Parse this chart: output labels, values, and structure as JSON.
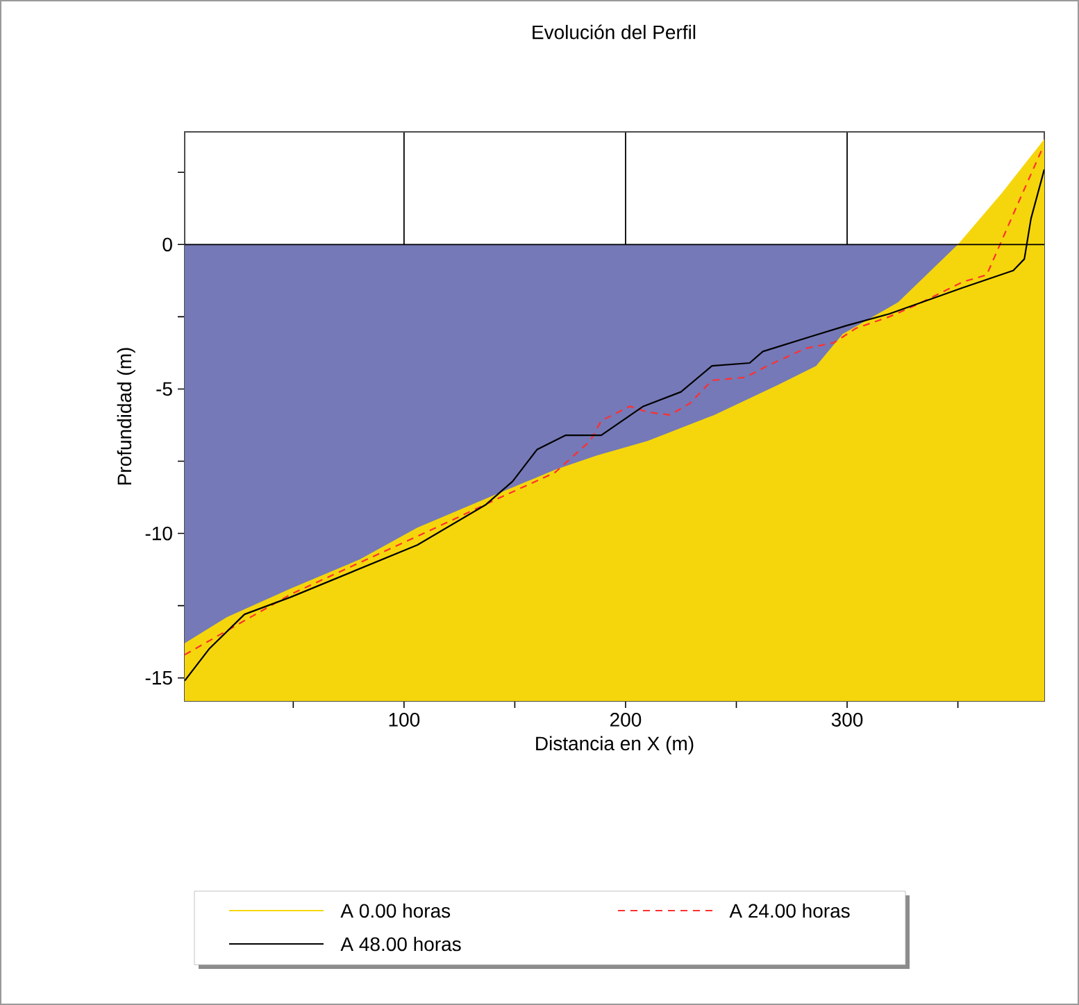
{
  "chart_data": {
    "type": "line",
    "title": "Evolución del Perfil",
    "xlabel": "Distancia en X (m)",
    "ylabel": "Profundidad (m)",
    "xlim": [
      1,
      389
    ],
    "ylim": [
      -15.8,
      3.9
    ],
    "xticks": [
      {
        "value": 50,
        "label": null
      },
      100,
      {
        "value": 150,
        "label": null
      },
      200,
      {
        "value": 250,
        "label": null
      },
      300,
      {
        "value": 350,
        "label": null
      }
    ],
    "yticks": [
      {
        "value": 2.5,
        "label": null
      },
      0,
      {
        "value": -2.5,
        "label": null
      },
      -5,
      {
        "value": -7.5,
        "label": null
      },
      -10,
      {
        "value": -12.5,
        "label": null
      },
      -15
    ],
    "grid": "x",
    "legend": "bottom",
    "bands": [
      {
        "axis": "y",
        "from": -15.8,
        "to": 0,
        "color": "#7579b7"
      }
    ],
    "ref_lines": [
      {
        "axis": "y",
        "value": 0,
        "color": "#000000"
      }
    ],
    "series": [
      {
        "name": "A 0.00 horas",
        "type": "area",
        "color": "#f5d60c",
        "x": [
          1,
          20,
          49,
          80,
          106,
          143,
          168,
          187,
          210,
          240,
          269,
          286,
          298,
          323,
          350,
          370,
          389
        ],
        "values": [
          -13.8,
          -12.9,
          -11.9,
          -10.9,
          -9.8,
          -8.6,
          -7.8,
          -7.3,
          -6.8,
          -5.9,
          -4.85,
          -4.2,
          -3.1,
          -2.0,
          0,
          1.8,
          3.65
        ]
      },
      {
        "name": "A 24.00 horas",
        "type": "line",
        "line_style": "dashed",
        "color": "#ff3030",
        "x": [
          1,
          49,
          106,
          145,
          168,
          184,
          189,
          202,
          210,
          220,
          229,
          239,
          254,
          264,
          281,
          294,
          304,
          319,
          331,
          352,
          363,
          369,
          377,
          388
        ],
        "values": [
          -14.2,
          -12.1,
          -10.1,
          -8.7,
          -7.9,
          -6.8,
          -6.1,
          -5.6,
          -5.8,
          -5.9,
          -5.5,
          -4.7,
          -4.6,
          -4.2,
          -3.6,
          -3.4,
          -2.9,
          -2.5,
          -2.1,
          -1.3,
          -1.05,
          0,
          1.4,
          3.3
        ]
      },
      {
        "name": "A 48.00 horas",
        "type": "line",
        "line_style": "solid",
        "color": "#000000",
        "x": [
          1,
          12,
          28,
          49,
          106,
          137,
          149,
          160,
          173,
          189,
          208,
          225,
          239,
          256,
          262,
          283,
          300,
          319,
          352,
          375,
          380,
          383,
          389
        ],
        "values": [
          -15.1,
          -14.0,
          -12.8,
          -12.2,
          -10.4,
          -9.0,
          -8.2,
          -7.1,
          -6.6,
          -6.6,
          -5.6,
          -5.1,
          -4.2,
          -4.1,
          -3.7,
          -3.2,
          -2.8,
          -2.4,
          -1.5,
          -0.9,
          -0.5,
          0.9,
          2.6
        ]
      }
    ]
  }
}
